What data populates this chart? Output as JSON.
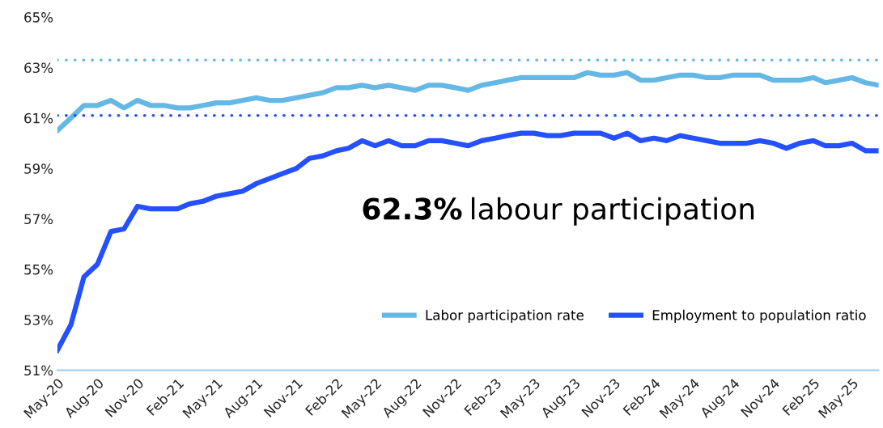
{
  "chart_data": {
    "type": "line",
    "x": [
      "2020-05",
      "2020-06",
      "2020-07",
      "2020-08",
      "2020-09",
      "2020-10",
      "2020-11",
      "2020-12",
      "2021-01",
      "2021-02",
      "2021-03",
      "2021-04",
      "2021-05",
      "2021-06",
      "2021-07",
      "2021-08",
      "2021-09",
      "2021-10",
      "2021-11",
      "2021-12",
      "2022-01",
      "2022-02",
      "2022-03",
      "2022-04",
      "2022-05",
      "2022-06",
      "2022-07",
      "2022-08",
      "2022-09",
      "2022-10",
      "2022-11",
      "2022-12",
      "2023-01",
      "2023-02",
      "2023-03",
      "2023-04",
      "2023-05",
      "2023-06",
      "2023-07",
      "2023-08",
      "2023-09",
      "2023-10",
      "2023-11",
      "2023-12",
      "2024-01",
      "2024-02",
      "2024-03",
      "2024-04",
      "2024-05",
      "2024-06",
      "2024-07",
      "2024-08",
      "2024-09",
      "2024-10",
      "2024-11",
      "2024-12",
      "2025-01",
      "2025-02",
      "2025-03",
      "2025-04",
      "2025-05",
      "2025-06",
      "2025-07"
    ],
    "series": [
      {
        "name": "Labor participation rate",
        "color": "#65b8e6",
        "values": [
          60.5,
          61.0,
          61.5,
          61.5,
          61.7,
          61.4,
          61.7,
          61.5,
          61.5,
          61.4,
          61.4,
          61.5,
          61.6,
          61.6,
          61.7,
          61.8,
          61.7,
          61.7,
          61.8,
          61.9,
          62.0,
          62.2,
          62.2,
          62.3,
          62.2,
          62.3,
          62.2,
          62.1,
          62.3,
          62.3,
          62.2,
          62.1,
          62.3,
          62.4,
          62.5,
          62.6,
          62.6,
          62.6,
          62.6,
          62.6,
          62.8,
          62.7,
          62.7,
          62.8,
          62.5,
          62.5,
          62.6,
          62.7,
          62.7,
          62.6,
          62.6,
          62.7,
          62.7,
          62.7,
          62.5,
          62.5,
          62.5,
          62.6,
          62.4,
          62.5,
          62.6,
          62.4,
          62.3
        ]
      },
      {
        "name": "Employment to population ratio",
        "color": "#2450ff",
        "values": [
          51.8,
          52.8,
          54.7,
          55.2,
          56.5,
          56.6,
          57.5,
          57.4,
          57.4,
          57.4,
          57.6,
          57.7,
          57.9,
          58.0,
          58.1,
          58.4,
          58.6,
          58.8,
          59.0,
          59.4,
          59.5,
          59.7,
          59.8,
          60.1,
          59.9,
          60.1,
          59.9,
          59.9,
          60.1,
          60.1,
          60.0,
          59.9,
          60.1,
          60.2,
          60.3,
          60.4,
          60.4,
          60.3,
          60.3,
          60.4,
          60.4,
          60.4,
          60.2,
          60.4,
          60.1,
          60.2,
          60.1,
          60.3,
          60.2,
          60.1,
          60.0,
          60.0,
          60.0,
          60.1,
          60.0,
          59.8,
          60.0,
          60.1,
          59.9,
          59.9,
          60.0,
          59.7,
          59.7
        ]
      }
    ],
    "xlim": [
      "2020-05",
      "2025-07"
    ],
    "xticks": [
      {
        "value": "2020-05",
        "label": "May-20"
      },
      {
        "value": "2020-08",
        "label": "Aug-20"
      },
      {
        "value": "2020-11",
        "label": "Nov-20"
      },
      {
        "value": "2021-02",
        "label": "Feb-21"
      },
      {
        "value": "2021-05",
        "label": "May-21"
      },
      {
        "value": "2021-08",
        "label": "Aug-21"
      },
      {
        "value": "2021-11",
        "label": "Nov-21"
      },
      {
        "value": "2022-02",
        "label": "Feb-22"
      },
      {
        "value": "2022-05",
        "label": "May-22"
      },
      {
        "value": "2022-08",
        "label": "Aug-22"
      },
      {
        "value": "2022-11",
        "label": "Nov-22"
      },
      {
        "value": "2023-02",
        "label": "Feb-23"
      },
      {
        "value": "2023-05",
        "label": "May-23"
      },
      {
        "value": "2023-08",
        "label": "Aug-23"
      },
      {
        "value": "2023-11",
        "label": "Nov-23"
      },
      {
        "value": "2024-02",
        "label": "Feb-24"
      },
      {
        "value": "2024-05",
        "label": "May-24"
      },
      {
        "value": "2024-08",
        "label": "Aug-24"
      },
      {
        "value": "2024-11",
        "label": "Nov-24"
      },
      {
        "value": "2025-02",
        "label": "Feb-25"
      },
      {
        "value": "2025-05",
        "label": "May-25"
      }
    ],
    "ylim": [
      51,
      65
    ],
    "yticks": [
      {
        "value": 51,
        "label": "51%"
      },
      {
        "value": 53,
        "label": "53%"
      },
      {
        "value": 55,
        "label": "55%"
      },
      {
        "value": 57,
        "label": "57%"
      },
      {
        "value": 59,
        "label": "59%"
      },
      {
        "value": 61,
        "label": "61%"
      },
      {
        "value": 63,
        "label": "63%"
      },
      {
        "value": 65,
        "label": "65%"
      }
    ],
    "ref_lines": [
      {
        "axis": "y",
        "value": 63.3,
        "color": "#65b8e6",
        "line_style": "dotted"
      },
      {
        "axis": "y",
        "value": 61.1,
        "color": "#2450ff",
        "line_style": "dotted"
      }
    ],
    "annotations": [
      "62.3% labour participation"
    ],
    "grid": false,
    "legend": "bottom right",
    "marker": "none",
    "line_style": "solid"
  }
}
